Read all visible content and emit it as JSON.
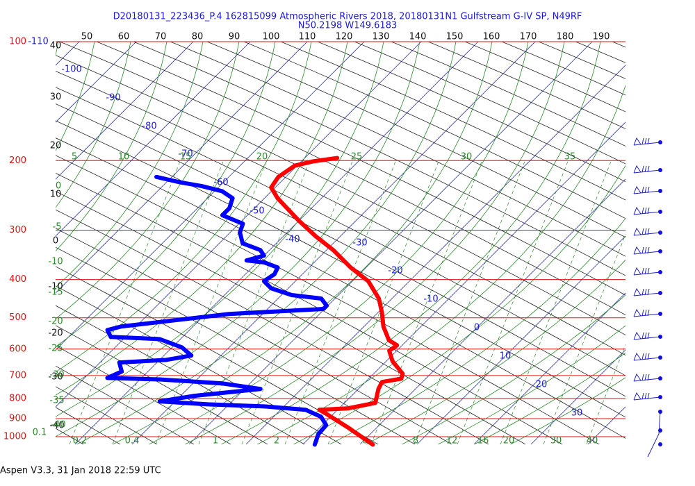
{
  "chart_data": {
    "type": "skewt",
    "title": "D20180131_223436_P.4 162815099 Atmospheric Rivers 2018, 20180131N1 Gulfstream G-IV SP, N49RF",
    "subtitle": "N50.2198 W149.6183",
    "footer": "Aspen V3.3, 31 Jan 2018  22:59 UTC",
    "log_scale": true,
    "ylim": [
      100,
      1000
    ],
    "yticks": [
      100,
      200,
      300,
      400,
      500,
      600,
      700,
      800,
      900,
      1000
    ],
    "isobar_color": "#e01010",
    "series": [
      {
        "color": "#ff0000",
        "pressure": [
          1047,
          946,
          876,
          855,
          848,
          821,
          757,
          727,
          713,
          693,
          644,
          606,
          587,
          570,
          526,
          485,
          447,
          404,
          373,
          337,
          311,
          284,
          249,
          234,
          220,
          206,
          201,
          197
        ],
        "values": [
          2.3,
          -5.2,
          -11.2,
          -13.2,
          -8.5,
          -4.6,
          -6.5,
          -7.1,
          -4.3,
          -4.9,
          -8.9,
          -11.3,
          -10.9,
          -13.2,
          -16.6,
          -19.3,
          -22.3,
          -27.2,
          -32.7,
          -38.8,
          -44.3,
          -50.0,
          -57.7,
          -60.7,
          -61.3,
          -60.4,
          -58.0,
          -54.3
        ]
      },
      {
        "color": "#0000ff",
        "pressure": [
          1047,
          985,
          935,
          890,
          855,
          838,
          828,
          814,
          788,
          757,
          733,
          716,
          710,
          684,
          649,
          639,
          623,
          594,
          566,
          559,
          537,
          526,
          489,
          475,
          466,
          447,
          438,
          421,
          404,
          388,
          373,
          362,
          358,
          348,
          337,
          324,
          304,
          289,
          275,
          264,
          249,
          239,
          232,
          227,
          220
        ],
        "values": [
          -7.9,
          -9.1,
          -9.3,
          -11.7,
          -15.6,
          -23.5,
          -33.7,
          -42.7,
          -37.6,
          -27.2,
          -34.9,
          -46.6,
          -56.0,
          -54.6,
          -56.6,
          -48.8,
          -45.2,
          -48.3,
          -53.7,
          -62.6,
          -64.4,
          -62.6,
          -45.9,
          -30.2,
          -30.2,
          -32.4,
          -38.2,
          -43.0,
          -45.5,
          -44.9,
          -45.5,
          -48.8,
          -52.2,
          -50.0,
          -51.6,
          -55.9,
          -58.3,
          -59.3,
          -64.4,
          -64.4,
          -65.6,
          -68.7,
          -73.2,
          -77.6,
          -82.7
        ]
      }
    ],
    "isotherm_labels": [
      "-110",
      "-100",
      "-90",
      "-80",
      "-70",
      "-60",
      "-50",
      "-40",
      "-30",
      "-20",
      "-10",
      "0",
      "10",
      "20",
      "30"
    ],
    "theta_top_labels": [
      "50",
      "60",
      "70",
      "80",
      "90",
      "100",
      "110",
      "120",
      "130",
      "140",
      "150",
      "160",
      "170",
      "180",
      "190"
    ],
    "theta_left_labels": [
      "40",
      "30",
      "20",
      "10",
      "0",
      "-10",
      "-20",
      "-30",
      "-40"
    ],
    "moist_top_labels": [
      "5",
      "10",
      "15",
      "20",
      "25",
      "30",
      "35"
    ],
    "moist_left_labels": [
      "0",
      "-5",
      "-10",
      "-15",
      "-20",
      "-25",
      "-30",
      "-35",
      "-40"
    ],
    "mixing_labels": [
      "0.1",
      "0.2",
      "0.4",
      "1",
      "2",
      "4",
      "6",
      "8",
      "12",
      "16",
      "20",
      "30",
      "40"
    ]
  }
}
